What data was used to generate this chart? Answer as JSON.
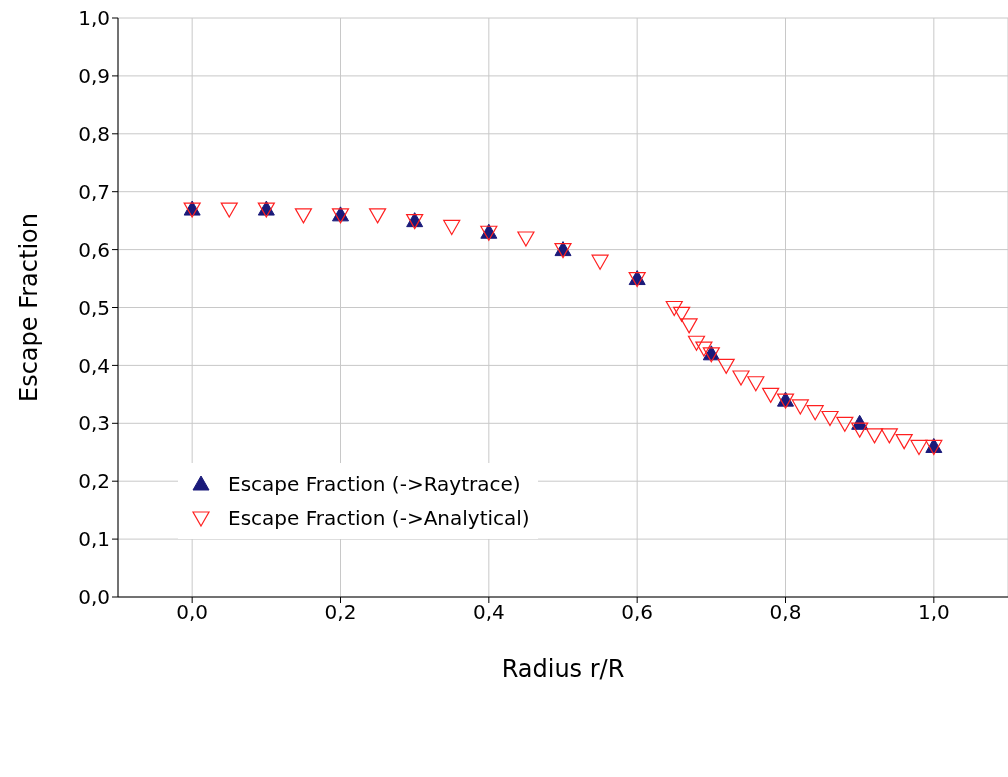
{
  "chart_data": {
    "type": "scatter",
    "xlabel": "Radius r/R",
    "ylabel": "Escape Fraction",
    "xlim": [
      -0.1,
      1.1
    ],
    "ylim": [
      0,
      1
    ],
    "xticks": [
      {
        "value": 0,
        "label": "0,0"
      },
      {
        "value": 0.2,
        "label": "0,2"
      },
      {
        "value": 0.4,
        "label": "0,4"
      },
      {
        "value": 0.6,
        "label": "0,6"
      },
      {
        "value": 0.8,
        "label": "0,8"
      },
      {
        "value": 1,
        "label": "1,0"
      }
    ],
    "yticks": [
      {
        "value": 0,
        "label": "0,0"
      },
      {
        "value": 0.1,
        "label": "0,1"
      },
      {
        "value": 0.2,
        "label": "0,2"
      },
      {
        "value": 0.3,
        "label": "0,3"
      },
      {
        "value": 0.4,
        "label": "0,4"
      },
      {
        "value": 0.5,
        "label": "0,5"
      },
      {
        "value": 0.6,
        "label": "0,6"
      },
      {
        "value": 0.7,
        "label": "0,7"
      },
      {
        "value": 0.8,
        "label": "0,8"
      },
      {
        "value": 0.9,
        "label": "0,9"
      },
      {
        "value": 1,
        "label": "1,0"
      }
    ],
    "grid": true,
    "legend": "left",
    "series": [
      {
        "name": "Escape Fraction (->Raytrace)",
        "color": "#1a1a7a",
        "marker": "triangle",
        "x": [
          0,
          0.1,
          0.2,
          0.3,
          0.4,
          0.5,
          0.6,
          0.7,
          0.8,
          0.9,
          1.0
        ],
        "values": [
          0.67,
          0.67,
          0.66,
          0.65,
          0.63,
          0.6,
          0.55,
          0.42,
          0.34,
          0.3,
          0.26
        ]
      },
      {
        "name": "Escape Fraction (->Analytical)",
        "color": "#ff2020",
        "marker": "triangle-down",
        "x": [
          0,
          0.05,
          0.1,
          0.15,
          0.2,
          0.25,
          0.3,
          0.35,
          0.4,
          0.45,
          0.5,
          0.55,
          0.6,
          0.65,
          0.66,
          0.67,
          0.68,
          0.69,
          0.7,
          0.72,
          0.74,
          0.76,
          0.78,
          0.8,
          0.82,
          0.84,
          0.86,
          0.88,
          0.9,
          0.92,
          0.94,
          0.96,
          0.98,
          1.0
        ],
        "values": [
          0.67,
          0.67,
          0.67,
          0.66,
          0.66,
          0.66,
          0.65,
          0.64,
          0.63,
          0.62,
          0.6,
          0.58,
          0.55,
          0.5,
          0.49,
          0.47,
          0.44,
          0.43,
          0.42,
          0.4,
          0.38,
          0.37,
          0.35,
          0.34,
          0.33,
          0.32,
          0.31,
          0.3,
          0.29,
          0.28,
          0.28,
          0.27,
          0.26,
          0.26
        ]
      }
    ]
  }
}
